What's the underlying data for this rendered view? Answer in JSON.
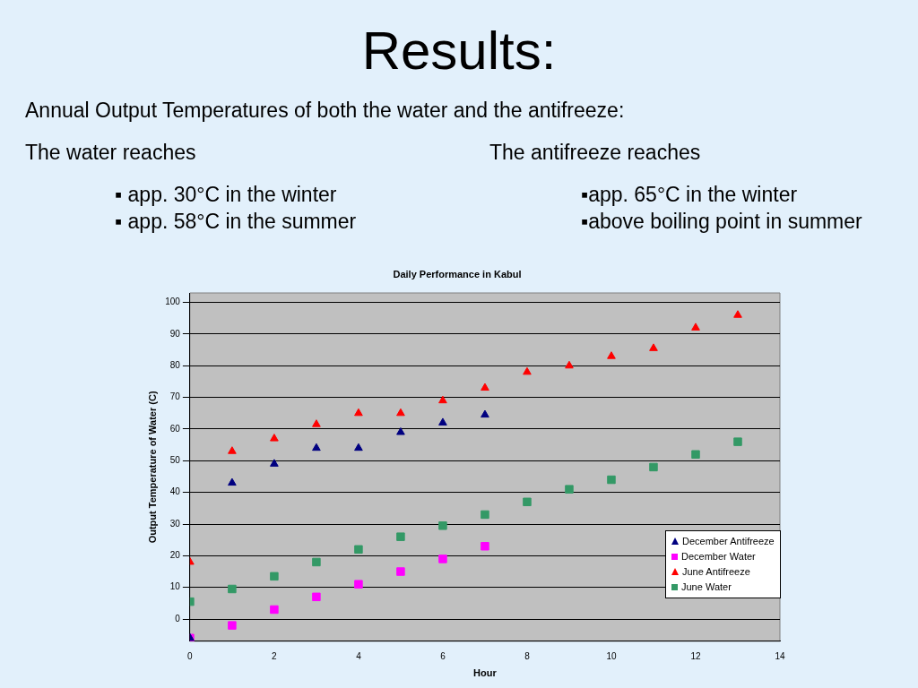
{
  "chart_data": {
    "type": "scatter",
    "title": "Results:",
    "subtitle": "Annual Output Temperatures of both the water and the antifreeze:",
    "annotations": [
      "The water reaches",
      "The antifreeze reaches",
      "▪ app. 30°C in the winter",
      "▪app. 65°C in the winter",
      "▪ app. 58°C in the summer",
      "▪above boiling point in summer",
      "Daily Performance in Kabul"
    ],
    "xlabel": "Hour",
    "ylabel": "Output Temperature of Water (C)",
    "xlim": [
      0,
      14
    ],
    "xticks": [
      0,
      2,
      4,
      6,
      8,
      10,
      12,
      14
    ],
    "ylim": [
      -7,
      103
    ],
    "yticks": [
      0,
      10,
      20,
      30,
      40,
      50,
      60,
      70,
      80,
      90,
      100
    ],
    "grid": "y",
    "legend": "bottom right",
    "series": [
      {
        "name": "December Antifreeze",
        "color": "#000080",
        "marker": "triangle",
        "x": [
          0,
          1,
          2,
          3,
          4,
          5,
          6,
          7
        ],
        "values": [
          -6,
          43,
          49,
          54,
          54,
          59,
          62,
          64.5
        ]
      },
      {
        "name": "December Water",
        "color": "#ff00ff",
        "marker": "square",
        "x": [
          0,
          1,
          2,
          3,
          4,
          5,
          6,
          7
        ],
        "values": [
          -6,
          -2,
          3,
          7,
          11,
          15,
          19,
          23
        ]
      },
      {
        "name": "June Antifreeze",
        "color": "#ff0000",
        "marker": "triangle",
        "x": [
          0,
          1,
          2,
          3,
          4,
          5,
          6,
          7,
          8,
          9,
          10,
          11,
          12,
          13
        ],
        "values": [
          18,
          53,
          57,
          61.5,
          65,
          65,
          69,
          73,
          78,
          80,
          83,
          85.5,
          92,
          96
        ]
      },
      {
        "name": "June Water",
        "color": "#339966",
        "marker": "square",
        "x": [
          0,
          1,
          2,
          3,
          4,
          5,
          6,
          7,
          8,
          9,
          10,
          11,
          12,
          13
        ],
        "values": [
          5.5,
          9.5,
          13.5,
          18,
          22,
          26,
          29.5,
          33,
          37,
          41,
          44,
          48,
          52,
          56
        ]
      }
    ]
  }
}
